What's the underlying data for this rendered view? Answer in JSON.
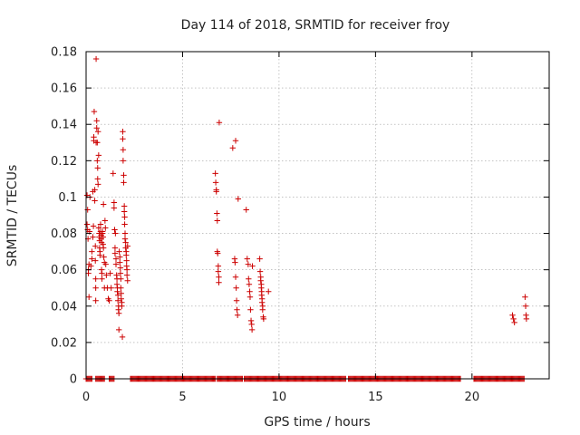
{
  "chart_data": {
    "type": "scatter",
    "title": "Day 114 of 2018, SRMTID for receiver froy",
    "xlabel": "GPS time / hours",
    "ylabel": "SRMTID / TECUs",
    "xlim": [
      0,
      24
    ],
    "ylim": [
      0,
      0.18
    ],
    "xticks": [
      0,
      5,
      10,
      15,
      20
    ],
    "yticks": [
      0,
      0.02,
      0.04,
      0.06,
      0.08,
      0.1,
      0.12,
      0.14,
      0.16,
      0.18
    ],
    "ytick_labels": [
      "0",
      "0.02",
      "0.04",
      "0.06",
      "0.08",
      "0.1",
      "0.12",
      "0.14",
      "0.16",
      "0.18"
    ],
    "grid": true,
    "marker": "+",
    "series": [
      {
        "name": "SRMTID",
        "color": "#cc0000",
        "points": [
          [
            0.05,
            0.101
          ],
          [
            0.05,
            0.085
          ],
          [
            0.08,
            0.093
          ],
          [
            0.08,
            0.082
          ],
          [
            0.1,
            0.077
          ],
          [
            0.12,
            0.06
          ],
          [
            0.12,
            0.058
          ],
          [
            0.15,
            0.063
          ],
          [
            0.15,
            0.045
          ],
          [
            0.18,
            0.081
          ],
          [
            0.2,
            0.1
          ],
          [
            0.25,
            0.062
          ],
          [
            0.3,
            0.07
          ],
          [
            0.3,
            0.066
          ],
          [
            0.35,
            0.078
          ],
          [
            0.35,
            0.103
          ],
          [
            0.38,
            0.084
          ],
          [
            0.4,
            0.131
          ],
          [
            0.4,
            0.133
          ],
          [
            0.42,
            0.147
          ],
          [
            0.45,
            0.104
          ],
          [
            0.45,
            0.098
          ],
          [
            0.48,
            0.073
          ],
          [
            0.48,
            0.065
          ],
          [
            0.5,
            0.055
          ],
          [
            0.5,
            0.05
          ],
          [
            0.5,
            0.043
          ],
          [
            0.52,
            0.13
          ],
          [
            0.52,
            0.176
          ],
          [
            0.55,
            0.142
          ],
          [
            0.55,
            0.138
          ],
          [
            0.58,
            0.13
          ],
          [
            0.58,
            0.12
          ],
          [
            0.6,
            0.116
          ],
          [
            0.6,
            0.11
          ],
          [
            0.62,
            0.107
          ],
          [
            0.62,
            0.136
          ],
          [
            0.65,
            0.123
          ],
          [
            0.65,
            0.083
          ],
          [
            0.68,
            0.08
          ],
          [
            0.68,
            0.078
          ],
          [
            0.7,
            0.076
          ],
          [
            0.7,
            0.072
          ],
          [
            0.72,
            0.07
          ],
          [
            0.72,
            0.068
          ],
          [
            0.75,
            0.085
          ],
          [
            0.75,
            0.081
          ],
          [
            0.78,
            0.079
          ],
          [
            0.78,
            0.077
          ],
          [
            0.8,
            0.075
          ],
          [
            0.8,
            0.06
          ],
          [
            0.82,
            0.058
          ],
          [
            0.82,
            0.055
          ],
          [
            0.85,
            0.081
          ],
          [
            0.85,
            0.08
          ],
          [
            0.88,
            0.078
          ],
          [
            0.88,
            0.074
          ],
          [
            0.9,
            0.072
          ],
          [
            0.9,
            0.096
          ],
          [
            0.92,
            0.067
          ],
          [
            0.95,
            0.064
          ],
          [
            0.95,
            0.05
          ],
          [
            0.98,
            0.087
          ],
          [
            1.0,
            0.083
          ],
          [
            1.02,
            0.063
          ],
          [
            1.05,
            0.057
          ],
          [
            1.1,
            0.05
          ],
          [
            1.15,
            0.044
          ],
          [
            1.2,
            0.043
          ],
          [
            1.25,
            0.058
          ],
          [
            1.3,
            0.05
          ],
          [
            1.4,
            0.113
          ],
          [
            1.45,
            0.097
          ],
          [
            1.45,
            0.094
          ],
          [
            1.48,
            0.082
          ],
          [
            1.5,
            0.072
          ],
          [
            1.5,
            0.069
          ],
          [
            1.52,
            0.08
          ],
          [
            1.55,
            0.066
          ],
          [
            1.55,
            0.063
          ],
          [
            1.58,
            0.057
          ],
          [
            1.6,
            0.055
          ],
          [
            1.6,
            0.052
          ],
          [
            1.62,
            0.05
          ],
          [
            1.62,
            0.048
          ],
          [
            1.65,
            0.046
          ],
          [
            1.65,
            0.043
          ],
          [
            1.68,
            0.04
          ],
          [
            1.68,
            0.038
          ],
          [
            1.7,
            0.036
          ],
          [
            1.7,
            0.027
          ],
          [
            1.72,
            0.07
          ],
          [
            1.75,
            0.067
          ],
          [
            1.75,
            0.064
          ],
          [
            1.78,
            0.061
          ],
          [
            1.78,
            0.058
          ],
          [
            1.8,
            0.055
          ],
          [
            1.8,
            0.05
          ],
          [
            1.82,
            0.047
          ],
          [
            1.82,
            0.044
          ],
          [
            1.85,
            0.042
          ],
          [
            1.85,
            0.04
          ],
          [
            1.88,
            0.023
          ],
          [
            1.9,
            0.136
          ],
          [
            1.9,
            0.132
          ],
          [
            1.92,
            0.126
          ],
          [
            1.92,
            0.12
          ],
          [
            1.95,
            0.112
          ],
          [
            1.95,
            0.108
          ],
          [
            1.98,
            0.095
          ],
          [
            1.98,
            0.092
          ],
          [
            2.0,
            0.089
          ],
          [
            2.0,
            0.085
          ],
          [
            2.02,
            0.08
          ],
          [
            2.02,
            0.077
          ],
          [
            2.05,
            0.075
          ],
          [
            2.05,
            0.072
          ],
          [
            2.08,
            0.07
          ],
          [
            2.08,
            0.068
          ],
          [
            2.1,
            0.065
          ],
          [
            2.1,
            0.062
          ],
          [
            2.12,
            0.06
          ],
          [
            2.12,
            0.057
          ],
          [
            2.15,
            0.054
          ],
          [
            2.15,
            0.073
          ],
          [
            6.7,
            0.113
          ],
          [
            6.72,
            0.108
          ],
          [
            6.75,
            0.104
          ],
          [
            6.75,
            0.103
          ],
          [
            6.78,
            0.091
          ],
          [
            6.8,
            0.087
          ],
          [
            6.8,
            0.07
          ],
          [
            6.82,
            0.069
          ],
          [
            6.85,
            0.062
          ],
          [
            6.85,
            0.059
          ],
          [
            6.88,
            0.056
          ],
          [
            6.88,
            0.053
          ],
          [
            6.9,
            0.141
          ],
          [
            7.6,
            0.127
          ],
          [
            7.75,
            0.131
          ],
          [
            7.7,
            0.066
          ],
          [
            7.72,
            0.064
          ],
          [
            7.75,
            0.056
          ],
          [
            7.78,
            0.05
          ],
          [
            7.8,
            0.043
          ],
          [
            7.82,
            0.038
          ],
          [
            7.85,
            0.035
          ],
          [
            7.88,
            0.099
          ],
          [
            8.3,
            0.093
          ],
          [
            8.35,
            0.066
          ],
          [
            8.4,
            0.063
          ],
          [
            8.42,
            0.055
          ],
          [
            8.45,
            0.052
          ],
          [
            8.48,
            0.048
          ],
          [
            8.5,
            0.045
          ],
          [
            8.52,
            0.038
          ],
          [
            8.55,
            0.032
          ],
          [
            8.58,
            0.03
          ],
          [
            8.6,
            0.027
          ],
          [
            8.62,
            0.062
          ],
          [
            9.0,
            0.066
          ],
          [
            9.02,
            0.059
          ],
          [
            9.05,
            0.056
          ],
          [
            9.05,
            0.054
          ],
          [
            9.08,
            0.052
          ],
          [
            9.08,
            0.05
          ],
          [
            9.1,
            0.048
          ],
          [
            9.1,
            0.046
          ],
          [
            9.12,
            0.044
          ],
          [
            9.12,
            0.042
          ],
          [
            9.15,
            0.04
          ],
          [
            9.15,
            0.038
          ],
          [
            9.18,
            0.034
          ],
          [
            9.2,
            0.033
          ],
          [
            9.45,
            0.048
          ],
          [
            22.1,
            0.035
          ],
          [
            22.15,
            0.033
          ],
          [
            22.2,
            0.031
          ],
          [
            22.75,
            0.045
          ],
          [
            22.78,
            0.04
          ],
          [
            22.8,
            0.035
          ],
          [
            22.82,
            0.033
          ]
        ]
      }
    ],
    "zero_ranges": [
      [
        0,
        0.3
      ],
      [
        0.5,
        0.95
      ],
      [
        1.2,
        1.45
      ],
      [
        2.3,
        6.7
      ],
      [
        6.8,
        8.1
      ],
      [
        8.2,
        13.45
      ],
      [
        13.6,
        19.4
      ],
      [
        20.1,
        22.7
      ]
    ]
  }
}
